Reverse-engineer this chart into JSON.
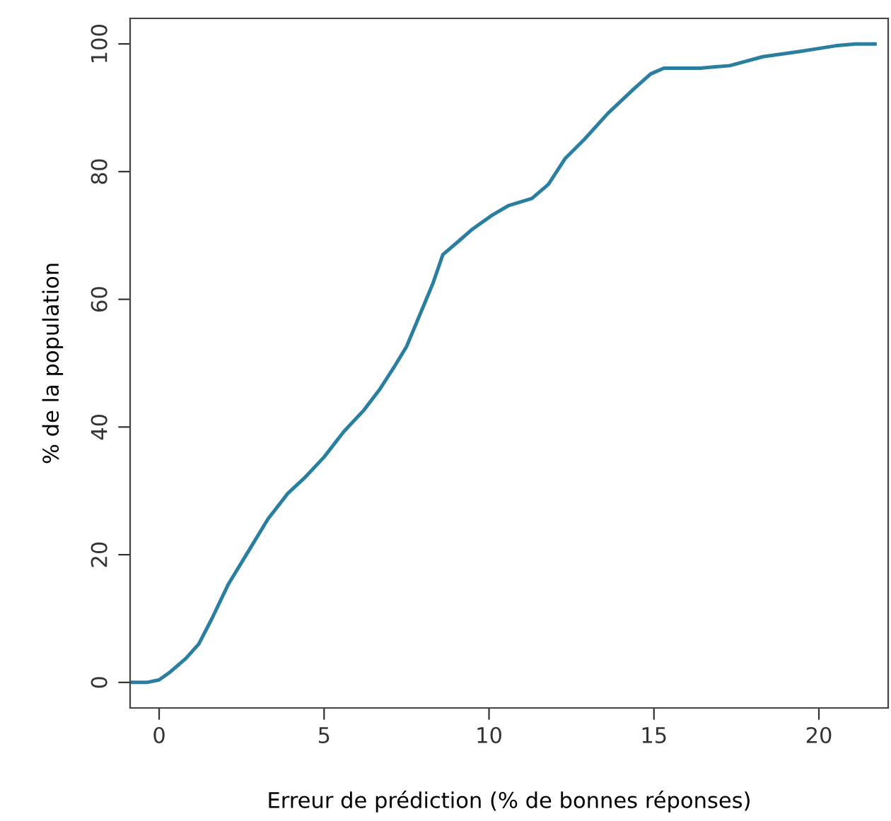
{
  "chart_data": {
    "type": "line",
    "xlabel": "Erreur de prédiction (% de bonnes réponses)",
    "ylabel": "% de la population",
    "x": [
      -0.88,
      -0.37,
      0,
      0.3,
      0.8,
      1.2,
      1.6,
      2.1,
      2.7,
      3.3,
      3.9,
      4.4,
      5.0,
      5.6,
      6.2,
      6.7,
      7.1,
      7.5,
      7.8,
      8.3,
      8.6,
      9.1,
      9.5,
      10.1,
      10.6,
      11.3,
      11.8,
      12.3,
      12.9,
      13.6,
      14.4,
      14.9,
      15.3,
      16.4,
      17.3,
      18.3,
      19.4,
      20.5,
      21.1,
      21.7
    ],
    "series": [
      {
        "color": "#2a7fa0",
        "values": [
          0,
          0,
          0.4,
          1.5,
          3.7,
          6,
          10,
          15.4,
          20.5,
          25.6,
          29.6,
          32,
          35.3,
          39.3,
          42.6,
          46,
          49.2,
          52.6,
          56.3,
          62.5,
          67,
          69.2,
          71,
          73.2,
          74.7,
          75.8,
          78,
          82,
          85.1,
          89.1,
          93,
          95.3,
          96.2,
          96.2,
          96.6,
          98,
          98.8,
          99.7,
          100,
          100
        ]
      }
    ],
    "xlim": [
      -0.88,
      22.1
    ],
    "ylim": [
      -4,
      104
    ],
    "xticks": [
      0,
      5,
      10,
      15,
      20
    ],
    "yticks": [
      0,
      20,
      40,
      60,
      80,
      100
    ],
    "grid": false,
    "legend": false,
    "marker": "none",
    "line_style": "solid"
  }
}
